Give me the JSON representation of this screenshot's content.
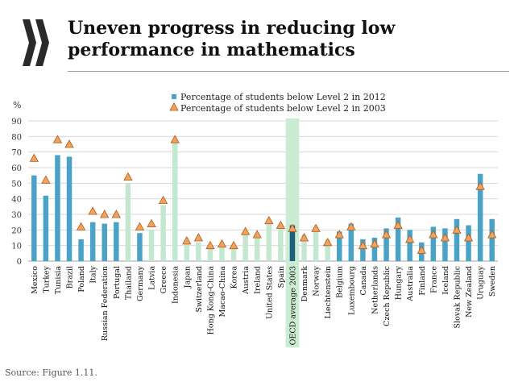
{
  "header": {
    "title_line1": "Uneven progress in reducing low",
    "title_line2": "performance in mathematics"
  },
  "logo": {
    "icon": "oecd-arrows-logo",
    "color": "#2a2a2a"
  },
  "footer": {
    "source": "Source: Figure 1.11."
  },
  "chart_data": {
    "type": "bar",
    "title": "Uneven progress in reducing low performance in mathematics",
    "ylabel": "%",
    "xlabel": "",
    "ylim": [
      0,
      90
    ],
    "yticks": [
      0,
      10,
      20,
      30,
      40,
      50,
      60,
      70,
      80,
      90
    ],
    "grid": true,
    "legend_position": "top",
    "categories": [
      "Mexico",
      "Turkey",
      "Tunisia",
      "Brazil",
      "Poland",
      "Italy",
      "Russian Federation",
      "Portugal",
      "Thailand",
      "Germany",
      "Latvia",
      "Greece",
      "Indonesia",
      "Japan",
      "Switzerland",
      "Hong Kong-China",
      "Macao-China",
      "Korea",
      "Austria",
      "Ireland",
      "United States",
      "Spain",
      "OECD average 2003",
      "Denmark",
      "Norway",
      "Liechtenstein",
      "Belgium",
      "Luxembourg",
      "Canada",
      "Netherlands",
      "Czech Republic",
      "Hungary",
      "Australia",
      "Finland",
      "France",
      "Iceland",
      "Slovak Republic",
      "New Zealand",
      "Uruguay",
      "Sweden"
    ],
    "bar_color_group": [
      "dark",
      "dark",
      "dark",
      "dark",
      "dark",
      "dark",
      "dark",
      "dark",
      "light",
      "dark",
      "light",
      "light",
      "light",
      "light",
      "light",
      "light",
      "light",
      "light",
      "light",
      "light",
      "light",
      "light",
      "oecd",
      "light",
      "light",
      "light",
      "dark",
      "dark",
      "dark",
      "dark",
      "dark",
      "dark",
      "dark",
      "dark",
      "dark",
      "dark",
      "dark",
      "dark",
      "dark",
      "dark"
    ],
    "colors": {
      "dark": "#4aa3c7",
      "light": "#c4e8cf",
      "oecd_bar": "#1f5f78",
      "oecd_highlight": "#c9ecd3",
      "marker_fill": "#f0a35e",
      "marker_stroke": "#b05a18",
      "grid": "#d9d9d9"
    },
    "series": [
      {
        "name": "Percentage of students below Level 2 in 2012",
        "kind": "bar",
        "values": [
          55,
          42,
          68,
          67,
          14,
          25,
          24,
          25,
          50,
          18,
          20,
          36,
          76,
          11,
          12,
          8,
          11,
          9,
          19,
          17,
          26,
          23,
          23,
          17,
          22,
          14,
          19,
          24,
          14,
          15,
          21,
          28,
          20,
          12,
          22,
          21,
          27,
          23,
          56,
          27
        ]
      },
      {
        "name": "Percentage of students below Level 2 in 2003",
        "kind": "marker",
        "values": [
          66,
          52,
          78,
          75,
          22,
          32,
          30,
          30,
          54,
          22,
          24,
          39,
          78,
          13,
          15,
          10,
          11,
          10,
          19,
          17,
          26,
          23,
          21,
          15,
          21,
          12,
          17,
          22,
          10,
          11,
          17,
          23,
          14,
          7,
          17,
          15,
          20,
          15,
          48,
          17
        ]
      }
    ]
  }
}
